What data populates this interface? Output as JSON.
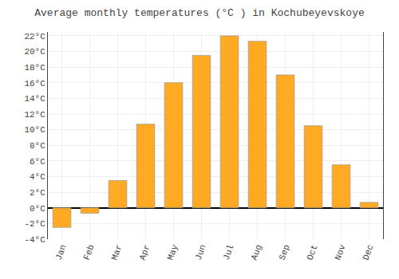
{
  "chart_data": {
    "type": "bar",
    "title": "Average monthly temperatures (°C ) in Kochubeyevskoye",
    "categories": [
      "Jan",
      "Feb",
      "Mar",
      "Apr",
      "May",
      "Jun",
      "Jul",
      "Aug",
      "Sep",
      "Oct",
      "Nov",
      "Dec"
    ],
    "values": [
      -2.5,
      -0.7,
      3.5,
      10.7,
      16.0,
      19.5,
      22.0,
      21.3,
      17.0,
      10.5,
      5.5,
      0.7
    ],
    "color": "#FFAA22",
    "ylim": [
      -4,
      22.5
    ],
    "yticks": [
      {
        "value": -4,
        "label": "-4°C"
      },
      {
        "value": -2,
        "label": "-2°C"
      },
      {
        "value": 0,
        "label": "0°C"
      },
      {
        "value": 2,
        "label": "2°C"
      },
      {
        "value": 4,
        "label": "4°C"
      },
      {
        "value": 6,
        "label": "6°C"
      },
      {
        "value": 8,
        "label": "8°C"
      },
      {
        "value": 10,
        "label": "10°C"
      },
      {
        "value": 12,
        "label": "12°C"
      },
      {
        "value": 14,
        "label": "14°C"
      },
      {
        "value": 16,
        "label": "16°C"
      },
      {
        "value": 18,
        "label": "18°C"
      },
      {
        "value": 20,
        "label": "20°C"
      },
      {
        "value": 22,
        "label": "22°C"
      }
    ],
    "grid": true
  }
}
